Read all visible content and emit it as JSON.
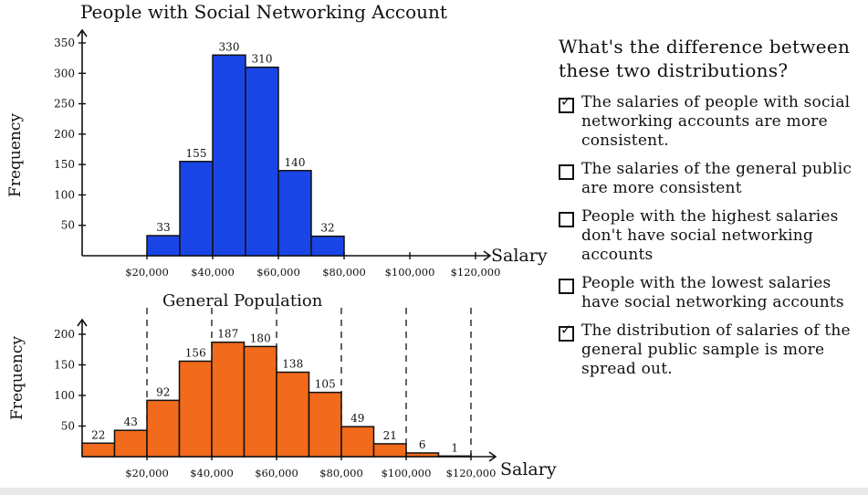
{
  "chart_data": [
    {
      "type": "bar",
      "title": "People with Social Networking Account",
      "xlabel": "Salary",
      "ylabel": "Frequency",
      "ylim": [
        0,
        350
      ],
      "yticks": [
        "350",
        "300",
        "250",
        "200",
        "150",
        "100",
        "50"
      ],
      "ytick_values": [
        350,
        300,
        250,
        200,
        150,
        100,
        50
      ],
      "xticks": [
        "$20,000",
        "$40,000",
        "$60,000",
        "$80,000",
        "$100,000",
        "$120,000"
      ],
      "xtick_values": [
        20000,
        40000,
        60000,
        80000,
        100000,
        120000
      ],
      "bins": [
        [
          20000,
          30000
        ],
        [
          30000,
          40000
        ],
        [
          40000,
          50000
        ],
        [
          50000,
          60000
        ],
        [
          60000,
          70000
        ],
        [
          70000,
          80000
        ]
      ],
      "values": [
        33,
        155,
        330,
        310,
        140,
        32
      ],
      "value_labels": [
        "33",
        "155",
        "330",
        "310",
        "140",
        "32"
      ],
      "color": "#1a45e6"
    },
    {
      "type": "bar",
      "title": "General Population",
      "xlabel": "Salary",
      "ylabel": "Frequency",
      "ylim": [
        0,
        200
      ],
      "yticks": [
        "200",
        "150",
        "100",
        "50"
      ],
      "ytick_values": [
        200,
        150,
        100,
        50
      ],
      "xticks": [
        "$20,000",
        "$40,000",
        "$60,000",
        "$80,000",
        "$100,000",
        "$120,000"
      ],
      "xtick_values": [
        20000,
        40000,
        60000,
        80000,
        100000,
        120000
      ],
      "bins": [
        [
          0,
          10000
        ],
        [
          10000,
          20000
        ],
        [
          20000,
          30000
        ],
        [
          30000,
          40000
        ],
        [
          40000,
          50000
        ],
        [
          50000,
          60000
        ],
        [
          60000,
          70000
        ],
        [
          70000,
          80000
        ],
        [
          80000,
          90000
        ],
        [
          90000,
          100000
        ],
        [
          100000,
          110000
        ],
        [
          110000,
          120000
        ]
      ],
      "values": [
        22,
        43,
        92,
        156,
        187,
        180,
        138,
        105,
        49,
        21,
        6,
        1
      ],
      "value_labels": [
        "22",
        "43",
        "92",
        "156",
        "187",
        "180",
        "138",
        "105",
        "49",
        "21",
        "6",
        "1"
      ],
      "dashed_lines": [
        20000,
        40000,
        60000,
        80000,
        100000,
        120000
      ],
      "color": "#f26a1b"
    }
  ],
  "question": {
    "text": "What's the difference between these two distributions?",
    "options": [
      {
        "label": "The salaries of people with social networking accounts are more consistent.",
        "checked": true
      },
      {
        "label": "The salaries of the general public are more consistent",
        "checked": false
      },
      {
        "label": "People with the highest salaries don't have social networking accounts",
        "checked": false
      },
      {
        "label": "People with the lowest salaries have social networking accounts",
        "checked": false
      },
      {
        "label": "The distribution of salaries of the general public sample is more spread out.",
        "checked": true
      }
    ]
  }
}
